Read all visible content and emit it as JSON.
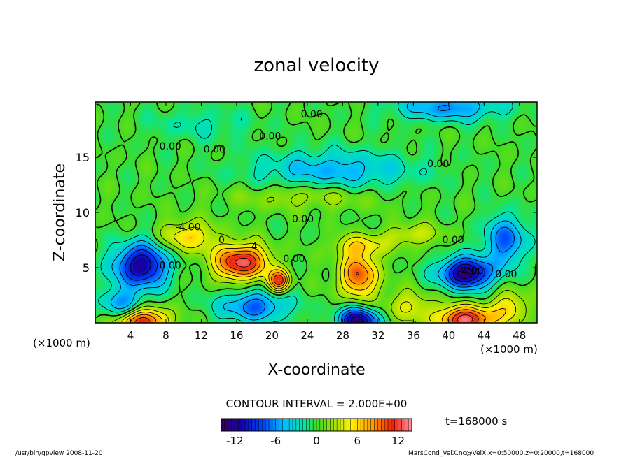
{
  "chart_data": {
    "type": "heatmap",
    "title": "zonal velocity",
    "xlabel": "X-coordinate",
    "ylabel": "Z-coordinate",
    "x_unit": "(×1000 m)",
    "y_unit": "(×1000 m)",
    "xlim": [
      0,
      50
    ],
    "ylim": [
      0,
      20
    ],
    "x_ticks": [
      4,
      8,
      12,
      16,
      20,
      24,
      28,
      32,
      36,
      40,
      44,
      48
    ],
    "y_ticks": [
      5,
      10,
      15
    ],
    "contour_interval_text": "CONTOUR INTERVAL = 2.000E+00",
    "time_text": "t=168000 s",
    "colorbar": {
      "range": [
        -14,
        14
      ],
      "ticks": [
        -12,
        -6,
        0,
        6,
        12
      ]
    },
    "contour_labels": [
      {
        "text": "0.00",
        "x": 24.5,
        "y": 18.6
      },
      {
        "text": "0.00",
        "x": 19.8,
        "y": 16.6
      },
      {
        "text": "0.00",
        "x": 8.5,
        "y": 15.7
      },
      {
        "text": "0.00",
        "x": 13.5,
        "y": 15.4
      },
      {
        "text": "0.00",
        "x": 38.8,
        "y": 14.1
      },
      {
        "text": "-4.00",
        "x": 10.5,
        "y": 8.4
      },
      {
        "text": "0.00",
        "x": 23.5,
        "y": 9.1
      },
      {
        "text": "0.00",
        "x": 40.5,
        "y": 7.2
      },
      {
        "text": "0.00",
        "x": 22.5,
        "y": 5.5
      },
      {
        "text": "-4.00",
        "x": 42.5,
        "y": 4.4
      },
      {
        "text": "0.00",
        "x": 46.5,
        "y": 4.1
      },
      {
        "text": "0.00",
        "x": 8.5,
        "y": 4.9
      },
      {
        "text": "4",
        "x": 18.0,
        "y": 6.6
      },
      {
        "text": "0",
        "x": 14.3,
        "y": 7.2
      }
    ],
    "features": [
      {
        "x": 5.2,
        "z": 5.2,
        "u": -12,
        "sx": 3.0,
        "sz": 2.0
      },
      {
        "x": 3.0,
        "z": 1.5,
        "u": -6,
        "sx": 2.5,
        "sz": 1.5
      },
      {
        "x": 5.2,
        "z": 0.2,
        "u": 12,
        "sx": 3.0,
        "sz": 1.2
      },
      {
        "x": 16.5,
        "z": 5.5,
        "u": 13,
        "sx": 3.0,
        "sz": 1.6
      },
      {
        "x": 20.8,
        "z": 3.8,
        "u": 11,
        "sx": 1.2,
        "sz": 1.0
      },
      {
        "x": 10.5,
        "z": 7.8,
        "u": 6,
        "sx": 3.0,
        "sz": 1.4
      },
      {
        "x": 18.0,
        "z": 1.5,
        "u": -7,
        "sx": 4.0,
        "sz": 1.4
      },
      {
        "x": 29.8,
        "z": 4.3,
        "u": 10,
        "sx": 2.2,
        "sz": 2.0
      },
      {
        "x": 29.8,
        "z": 0.2,
        "u": -13,
        "sx": 2.2,
        "sz": 1.2
      },
      {
        "x": 42.0,
        "z": 4.5,
        "u": -13,
        "sx": 3.0,
        "sz": 1.4
      },
      {
        "x": 46.5,
        "z": 7.5,
        "u": -7,
        "sx": 2.5,
        "sz": 2.2
      },
      {
        "x": 42.0,
        "z": 0.3,
        "u": 13,
        "sx": 3.2,
        "sz": 1.2
      },
      {
        "x": 35.5,
        "z": 1.5,
        "u": 4,
        "sx": 3.0,
        "sz": 1.4
      },
      {
        "x": 47.0,
        "z": 1.5,
        "u": 5,
        "sx": 2.0,
        "sz": 1.5
      },
      {
        "x": 27.0,
        "z": 13.8,
        "u": -5,
        "sx": 9.0,
        "sz": 1.8
      },
      {
        "x": 40.0,
        "z": 19.5,
        "u": -6,
        "sx": 6.0,
        "sz": 1.2
      },
      {
        "x": 30.0,
        "z": 7.0,
        "u": 5,
        "sx": 3.0,
        "sz": 1.0
      },
      {
        "x": 36.0,
        "z": 8.0,
        "u": 4,
        "sx": 3.0,
        "sz": 1.0
      },
      {
        "x": 24.0,
        "z": 11.5,
        "u": 3,
        "sx": 8.0,
        "sz": 1.2
      },
      {
        "x": 12.0,
        "z": 18.0,
        "u": -2,
        "sx": 6.0,
        "sz": 1.5
      }
    ]
  },
  "footer": {
    "left": "/usr/bin/gpview   2008-11-20",
    "right": "MarsCond_VelX.nc@VelX,x=0:50000,z=0:20000,t=168000"
  }
}
